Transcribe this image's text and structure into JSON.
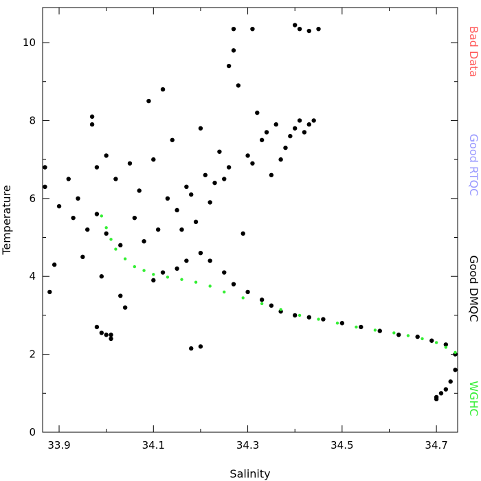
{
  "chart_data": {
    "type": "scatter",
    "title": "",
    "xlabel": "Salinity",
    "ylabel": "Temperature",
    "xlim": [
      33.865,
      34.745
    ],
    "ylim": [
      0,
      10.9
    ],
    "x_ticks": [
      33.9,
      34.1,
      34.3,
      34.5,
      34.7
    ],
    "x_tick_labels": [
      "33.9",
      "34.1",
      "34.3",
      "34.5",
      "34.7"
    ],
    "x_minor_ticks": [
      34.0,
      34.2,
      34.4,
      34.6
    ],
    "y_ticks": [
      0,
      2,
      4,
      6,
      8,
      10
    ],
    "y_tick_labels": [
      "0",
      "2",
      "4",
      "6",
      "8",
      "10"
    ],
    "y_minor_ticks": [
      1,
      3,
      5,
      7,
      9
    ],
    "grid": false,
    "legend_placement": "right",
    "legend": [
      {
        "label": "Bad  Data",
        "color": "#ff5a5a"
      },
      {
        "label": "Good  RTQC",
        "color": "#9999ff"
      },
      {
        "label": "Good  DMQC",
        "color": "#000000"
      },
      {
        "label": "WGHC",
        "color": "#33ee33"
      }
    ],
    "series": [
      {
        "name": "Good  DMQC",
        "color": "#000000",
        "x": [
          33.87,
          33.87,
          33.88,
          33.89,
          33.9,
          33.92,
          33.93,
          33.94,
          33.95,
          33.96,
          33.97,
          33.97,
          33.98,
          33.98,
          33.99,
          34.0,
          34.0,
          34.01,
          34.02,
          34.03,
          34.04,
          34.05,
          34.06,
          34.07,
          34.08,
          34.09,
          34.1,
          34.11,
          34.12,
          34.13,
          34.14,
          34.15,
          34.16,
          34.17,
          34.18,
          34.19,
          34.2,
          34.21,
          34.22,
          34.23,
          34.24,
          34.25,
          34.26,
          34.27,
          34.28,
          34.29,
          34.3,
          34.31,
          34.32,
          34.33,
          34.34,
          34.35,
          34.36,
          34.37,
          34.38,
          34.39,
          34.4,
          34.41,
          34.42,
          34.43,
          34.44,
          34.27,
          34.26,
          34.31,
          34.4,
          34.41,
          34.43,
          34.45,
          34.18,
          34.2,
          33.98,
          33.99,
          34.0,
          34.01,
          34.03,
          34.1,
          34.12,
          34.15,
          34.17,
          34.2,
          34.22,
          34.25,
          34.27,
          34.3,
          34.33,
          34.35,
          34.37,
          34.4,
          34.43,
          34.46,
          34.5,
          34.54,
          34.58,
          34.62,
          34.66,
          34.69,
          34.72,
          34.74,
          34.74,
          34.73,
          34.72,
          34.71,
          34.7,
          34.7
        ],
        "y": [
          6.8,
          6.3,
          3.6,
          4.3,
          5.8,
          6.5,
          5.5,
          6.0,
          4.5,
          5.2,
          7.9,
          8.1,
          6.8,
          5.6,
          4.0,
          5.1,
          7.1,
          2.5,
          6.5,
          4.8,
          3.2,
          6.9,
          5.5,
          6.2,
          4.9,
          8.5,
          7.0,
          5.2,
          8.8,
          6.0,
          7.5,
          5.7,
          5.2,
          6.3,
          6.1,
          5.4,
          7.8,
          6.6,
          5.9,
          6.4,
          7.2,
          6.5,
          6.8,
          9.8,
          8.9,
          5.1,
          7.1,
          6.9,
          8.2,
          7.5,
          7.7,
          6.6,
          7.9,
          7.0,
          7.3,
          7.6,
          7.8,
          8.0,
          7.7,
          7.9,
          8.0,
          10.35,
          9.4,
          10.35,
          10.45,
          10.35,
          10.3,
          10.35,
          2.15,
          2.2,
          2.7,
          2.55,
          2.5,
          2.4,
          3.5,
          3.9,
          4.1,
          4.2,
          4.4,
          4.6,
          4.4,
          4.1,
          3.8,
          3.6,
          3.4,
          3.25,
          3.1,
          3.0,
          2.95,
          2.9,
          2.8,
          2.7,
          2.6,
          2.5,
          2.45,
          2.35,
          2.25,
          2.0,
          1.6,
          1.3,
          1.1,
          1.0,
          0.9,
          0.85
        ]
      },
      {
        "name": "WGHC",
        "color": "#33ee33",
        "x": [
          33.99,
          34.0,
          34.01,
          34.02,
          34.04,
          34.06,
          34.08,
          34.1,
          34.13,
          34.16,
          34.19,
          34.22,
          34.25,
          34.29,
          34.33,
          34.37,
          34.41,
          34.45,
          34.49,
          34.53,
          34.57,
          34.61,
          34.64,
          34.67,
          34.7,
          34.72,
          34.74
        ],
        "y": [
          5.55,
          5.25,
          4.95,
          4.7,
          4.45,
          4.25,
          4.15,
          4.05,
          3.98,
          3.92,
          3.85,
          3.75,
          3.6,
          3.45,
          3.3,
          3.15,
          3.0,
          2.9,
          2.8,
          2.7,
          2.62,
          2.55,
          2.48,
          2.4,
          2.3,
          2.18,
          2.05
        ]
      }
    ]
  }
}
